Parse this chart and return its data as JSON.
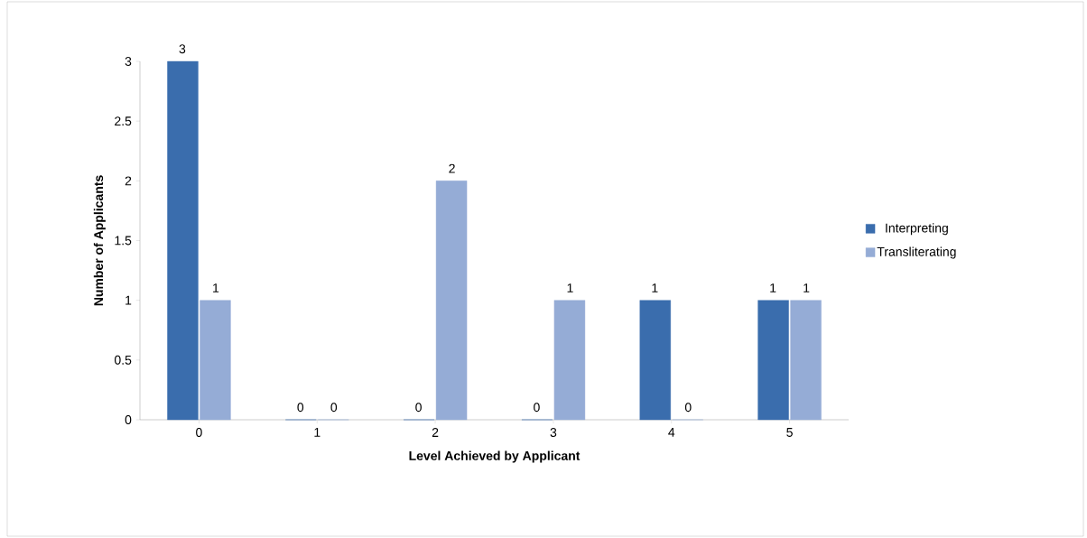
{
  "chart_data": {
    "type": "bar",
    "xlabel": "Level Achieved by Applicant",
    "ylabel": "Number of Applicants",
    "categories": [
      "0",
      "1",
      "2",
      "3",
      "4",
      "5"
    ],
    "series": [
      {
        "name": "Interpreting",
        "color": "#3a6dad",
        "values": [
          3,
          0,
          0,
          0,
          1,
          1
        ]
      },
      {
        "name": "Transliterating",
        "color": "#95acd6",
        "values": [
          1,
          0,
          2,
          1,
          0,
          1
        ]
      }
    ],
    "ylim": [
      0,
      3
    ],
    "yticks": [
      0,
      0.5,
      1,
      1.5,
      2,
      2.5,
      3
    ],
    "data_labels": true,
    "grid": false,
    "legend": "right"
  }
}
